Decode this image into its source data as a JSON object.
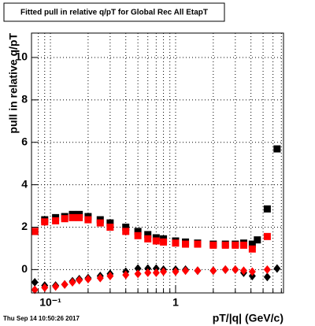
{
  "chart_data": {
    "type": "scatter",
    "title": "Fitted pull in relative q/pT for Global Rec All EtapT",
    "x_label": "pT/|q| (GeV/c)",
    "y_label": "pull in relative q/pT",
    "timestamp": "Thu Sep 14 10:50:26 2017",
    "log_x": true,
    "grid": true,
    "xlim": [
      0.0706,
      7.28
    ],
    "ylim": [
      -1.1,
      11.15
    ],
    "xticks": [
      {
        "value": 0.1,
        "label": "10⁻¹"
      },
      1
    ],
    "xminorticks": [
      0.08,
      0.09,
      0.2,
      0.3,
      0.4,
      0.5,
      0.6,
      0.7,
      0.8,
      0.9,
      2,
      3,
      4,
      5,
      6,
      7
    ],
    "yticks": [
      0,
      2,
      4,
      6,
      8,
      10
    ],
    "series": [
      {
        "color": "#000000",
        "marker": "square",
        "x": [
          0.075,
          0.09,
          0.11,
          0.13,
          0.15,
          0.17,
          0.2,
          0.25,
          0.3,
          0.4,
          0.5,
          0.6,
          0.7,
          0.8,
          1.0,
          1.2,
          1.5,
          2,
          2.5,
          3,
          3.5,
          4.1,
          4.5,
          5.4,
          6.47
        ],
        "values": [
          1.8,
          2.35,
          2.45,
          2.5,
          2.6,
          2.6,
          2.5,
          2.35,
          2.2,
          2.0,
          1.8,
          1.65,
          1.5,
          1.45,
          1.35,
          1.3,
          1.25,
          1.2,
          1.2,
          1.2,
          1.25,
          1.2,
          1.4,
          2.86,
          5.69
        ]
      },
      {
        "color": "#ff0000",
        "marker": "square",
        "x": [
          0.075,
          0.09,
          0.11,
          0.13,
          0.15,
          0.17,
          0.2,
          0.25,
          0.3,
          0.4,
          0.5,
          0.6,
          0.7,
          0.8,
          1.0,
          1.2,
          1.5,
          2,
          2.5,
          3,
          3.5,
          4.1,
          5.4
        ],
        "values": [
          1.8,
          2.25,
          2.3,
          2.4,
          2.45,
          2.45,
          2.35,
          2.2,
          2.0,
          1.8,
          1.6,
          1.45,
          1.35,
          1.3,
          1.25,
          1.2,
          1.2,
          1.15,
          1.15,
          1.15,
          1.15,
          0.97,
          1.56
        ]
      },
      {
        "color": "#000000",
        "marker": "diamond",
        "x": [
          0.075,
          0.09,
          0.11,
          0.13,
          0.15,
          0.17,
          0.2,
          0.25,
          0.3,
          0.4,
          0.5,
          0.6,
          0.7,
          0.8,
          1.0,
          1.2,
          1.5,
          2,
          2.5,
          3,
          3.5,
          4.1,
          5.4,
          6.47
        ],
        "values": [
          -0.6,
          -0.75,
          -0.75,
          -0.7,
          -0.55,
          -0.45,
          -0.4,
          -0.3,
          -0.2,
          -0.1,
          0.05,
          0.05,
          0.05,
          0.0,
          0.0,
          0.0,
          -0.05,
          -0.05,
          0.0,
          0.0,
          -0.15,
          -0.3,
          -0.35,
          0.05
        ]
      },
      {
        "color": "#ff0000",
        "marker": "diamond",
        "x": [
          0.075,
          0.09,
          0.11,
          0.13,
          0.15,
          0.17,
          0.2,
          0.25,
          0.3,
          0.4,
          0.5,
          0.6,
          0.7,
          0.8,
          1.0,
          1.2,
          1.5,
          2,
          2.5,
          3,
          3.5,
          4.1,
          5.4
        ],
        "values": [
          -0.95,
          -0.85,
          -0.8,
          -0.7,
          -0.6,
          -0.5,
          -0.45,
          -0.4,
          -0.3,
          -0.25,
          -0.2,
          -0.15,
          -0.15,
          -0.1,
          -0.1,
          -0.05,
          -0.05,
          -0.05,
          0.0,
          0.0,
          -0.05,
          -0.1,
          0.0
        ]
      }
    ]
  }
}
